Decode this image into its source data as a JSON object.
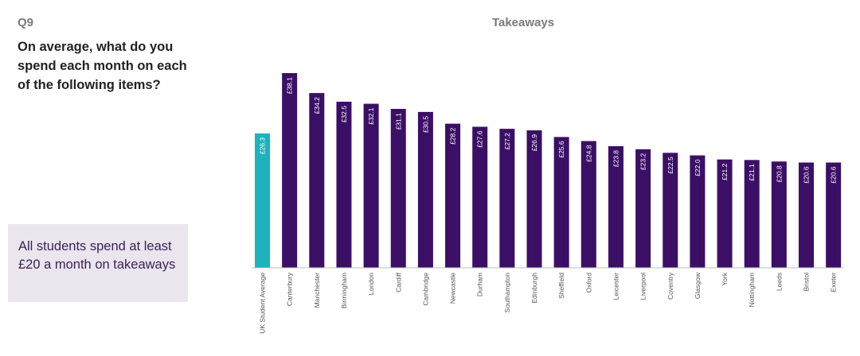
{
  "slide": {
    "q_number": "Q9",
    "question": "On average, what do you spend each month on each of the following items?",
    "callout": "All students spend at least £20 a month on takeaways"
  },
  "colors": {
    "highlight_bar": "#1cb3bd",
    "bar": "#3b0f66",
    "callout_bg": "#ebe5ee"
  },
  "chart_data": {
    "type": "bar",
    "title": "Takeaways",
    "xlabel": "",
    "ylabel": "",
    "currency": "£",
    "value_labels_inside_bars": true,
    "gridlines": false,
    "y_axis_shown": false,
    "categories": [
      "UK Student Average",
      "Canterbury",
      "Manchester",
      "Birmingham",
      "London",
      "Cardiff",
      "Cambridge",
      "Newcastle",
      "Durham",
      "Southampton",
      "Edinburgh",
      "Sheffield",
      "Oxford",
      "Leicester",
      "Liverpool",
      "Coventry",
      "Glasgow",
      "York",
      "Nottingham",
      "Leeds",
      "Bristol",
      "Exeter"
    ],
    "values": [
      26.3,
      38.1,
      34.2,
      32.5,
      32.1,
      31.1,
      30.5,
      28.2,
      27.6,
      27.2,
      26.9,
      25.6,
      24.8,
      23.8,
      23.2,
      22.5,
      22.0,
      21.2,
      21.1,
      20.8,
      20.6,
      20.6
    ],
    "value_labels": [
      "£26.3",
      "£38.1",
      "£34.2",
      "£32.5",
      "£32.1",
      "£31.1",
      "£30.5",
      "£28.2",
      "£27.6",
      "£27.2",
      "£26.9",
      "£25.6",
      "£24.8",
      "£23.8",
      "£23.2",
      "£22.5",
      "£22.0",
      "£21.2",
      "£21.1",
      "£20.8",
      "£20.6",
      "£20.6"
    ],
    "highlight_index": 0,
    "ylim": [
      0,
      38.1
    ]
  }
}
